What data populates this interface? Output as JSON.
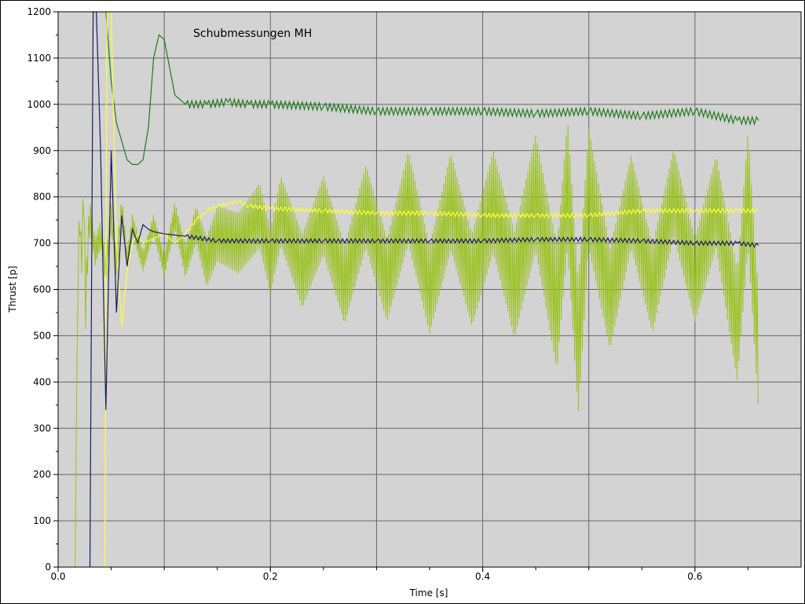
{
  "chart_data": {
    "type": "line",
    "title": "Schubmessungen MH",
    "xlabel": "Time [s]",
    "ylabel": "Thrust [p]",
    "xlim": [
      0,
      0.7
    ],
    "ylim": [
      0,
      1200
    ],
    "x_ticks": [
      0.0,
      0.2,
      0.4,
      0.6
    ],
    "x_tick_labels": [
      "0.0",
      "0.2",
      "0.4",
      "0.6"
    ],
    "y_ticks": [
      0,
      100,
      200,
      300,
      400,
      500,
      600,
      700,
      800,
      900,
      1000,
      1100,
      1200
    ],
    "y_tick_labels": [
      "0",
      "100",
      "200",
      "300",
      "400",
      "500",
      "600",
      "700",
      "800",
      "900",
      "1000",
      "1100",
      "1200"
    ],
    "grid": true,
    "plot_background": "#d3d3d3",
    "grid_color": "#666666",
    "series": [
      {
        "color": "#99c21a",
        "x": [
          0.016,
          0.018,
          0.02,
          0.022,
          0.024,
          0.026,
          0.028,
          0.03,
          0.035,
          0.04,
          0.045,
          0.05,
          0.055,
          0.06,
          0.065,
          0.07,
          0.08,
          0.09,
          0.1,
          0.11,
          0.12,
          0.13,
          0.14,
          0.15,
          0.17,
          0.19,
          0.2,
          0.21,
          0.23,
          0.25,
          0.27,
          0.29,
          0.31,
          0.33,
          0.35,
          0.37,
          0.39,
          0.41,
          0.43,
          0.45,
          0.47,
          0.48,
          0.49,
          0.5,
          0.52,
          0.54,
          0.56,
          0.58,
          0.6,
          0.62,
          0.64,
          0.65,
          0.66
        ],
        "y": [
          0,
          500,
          780,
          650,
          820,
          560,
          700,
          760,
          680,
          720,
          640,
          760,
          650,
          780,
          660,
          740,
          660,
          740,
          650,
          760,
          660,
          740,
          660,
          720,
          700,
          760,
          660,
          770,
          640,
          760,
          610,
          780,
          620,
          800,
          600,
          790,
          620,
          790,
          610,
          810,
          560,
          830,
          470,
          820,
          580,
          790,
          600,
          810,
          620,
          790,
          520,
          820,
          460
        ],
        "spread": [
          0,
          0,
          60,
          80,
          90,
          120,
          90,
          60,
          60,
          60,
          60,
          60,
          50,
          50,
          50,
          45,
          45,
          45,
          50,
          60,
          70,
          80,
          110,
          120,
          130,
          140,
          140,
          150,
          160,
          170,
          170,
          180,
          180,
          200,
          190,
          210,
          200,
          220,
          230,
          250,
          270,
          280,
          290,
          260,
          220,
          200,
          190,
          190,
          180,
          200,
          240,
          250,
          250
        ]
      },
      {
        "color": "#1f7a1f",
        "x": [
          0.03,
          0.035,
          0.04,
          0.045,
          0.05,
          0.055,
          0.06,
          0.065,
          0.07,
          0.075,
          0.08,
          0.085,
          0.09,
          0.095,
          0.1,
          0.105,
          0.11,
          0.12,
          0.14,
          0.16,
          0.18,
          0.2,
          0.25,
          0.3,
          0.35,
          0.4,
          0.45,
          0.5,
          0.55,
          0.6,
          0.64,
          0.66
        ],
        "y": [
          1200,
          1200,
          1200,
          1200,
          1050,
          960,
          920,
          880,
          870,
          870,
          880,
          950,
          1100,
          1150,
          1140,
          1080,
          1020,
          1000,
          1000,
          1005,
          1000,
          1000,
          995,
          985,
          985,
          985,
          980,
          985,
          975,
          985,
          965,
          965
        ]
      },
      {
        "color": "#ffff33",
        "x": [
          0.044,
          0.046,
          0.05,
          0.055,
          0.06,
          0.065,
          0.07,
          0.075,
          0.08,
          0.09,
          0.1,
          0.11,
          0.12,
          0.13,
          0.14,
          0.15,
          0.16,
          0.17,
          0.18,
          0.2,
          0.25,
          0.3,
          0.35,
          0.4,
          0.45,
          0.5,
          0.55,
          0.6,
          0.64,
          0.66
        ],
        "y": [
          0,
          1200,
          1200,
          700,
          520,
          640,
          700,
          720,
          700,
          710,
          720,
          700,
          720,
          750,
          770,
          780,
          785,
          790,
          780,
          775,
          770,
          765,
          765,
          760,
          760,
          760,
          770,
          770,
          770,
          770
        ]
      },
      {
        "color": "#1a1a66",
        "x": [
          0.03,
          0.033,
          0.036,
          0.04,
          0.045,
          0.05,
          0.055,
          0.06,
          0.065,
          0.07,
          0.075,
          0.08,
          0.085,
          0.09,
          0.1,
          0.12,
          0.15,
          0.2,
          0.25,
          0.3,
          0.35,
          0.4,
          0.45,
          0.5,
          0.55,
          0.6,
          0.64,
          0.66
        ],
        "y": [
          0,
          1200,
          1200,
          900,
          340,
          900,
          550,
          760,
          650,
          730,
          700,
          740,
          730,
          725,
          720,
          715,
          705,
          705,
          705,
          705,
          705,
          705,
          708,
          708,
          705,
          700,
          700,
          695
        ]
      }
    ]
  }
}
